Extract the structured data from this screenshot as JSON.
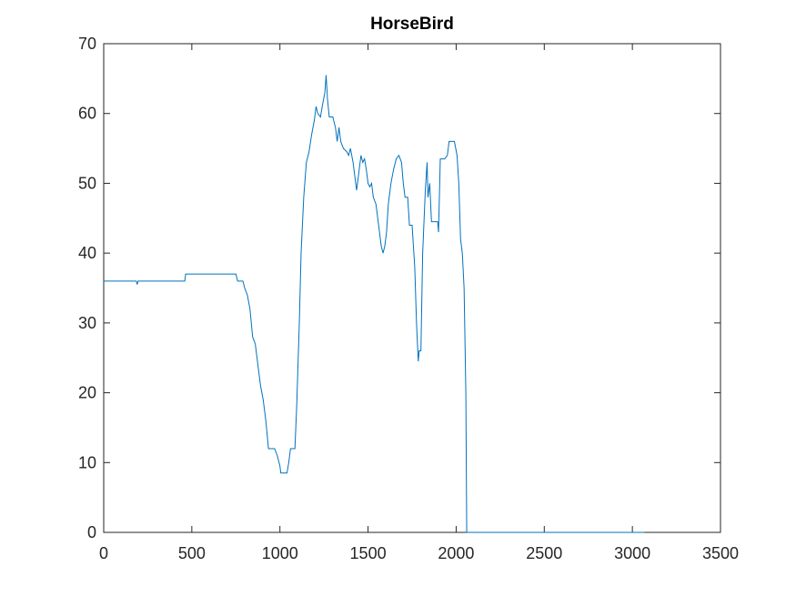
{
  "chart_data": {
    "type": "line",
    "title": "HorseBird",
    "x": [
      0,
      185,
      190,
      195,
      460,
      465,
      750,
      760,
      790,
      800,
      815,
      830,
      845,
      860,
      875,
      890,
      905,
      920,
      935,
      970,
      985,
      1000,
      1005,
      1040,
      1050,
      1060,
      1085,
      1095,
      1110,
      1120,
      1135,
      1150,
      1165,
      1180,
      1195,
      1205,
      1215,
      1230,
      1240,
      1255,
      1262,
      1270,
      1280,
      1300,
      1315,
      1325,
      1335,
      1345,
      1360,
      1380,
      1390,
      1400,
      1415,
      1425,
      1435,
      1445,
      1460,
      1470,
      1480,
      1490,
      1500,
      1510,
      1520,
      1530,
      1545,
      1560,
      1575,
      1585,
      1595,
      1605,
      1615,
      1630,
      1645,
      1660,
      1675,
      1690,
      1700,
      1710,
      1725,
      1735,
      1750,
      1765,
      1775,
      1785,
      1790,
      1800,
      1810,
      1825,
      1835,
      1840,
      1850,
      1860,
      1880,
      1895,
      1900,
      1910,
      1935,
      1950,
      1960,
      1990,
      2005,
      2015,
      2025,
      2035,
      2045,
      2055,
      2060,
      3070
    ],
    "series": [
      {
        "name": "HorseBird",
        "color": "#0072bd",
        "values": [
          36,
          36,
          35.5,
          36,
          36,
          37,
          37,
          36,
          36,
          35,
          34,
          32,
          28,
          27,
          24,
          21,
          19,
          16,
          12,
          12,
          11,
          9.5,
          8.5,
          8.5,
          10,
          12,
          12,
          18,
          30,
          40,
          48,
          53,
          54.5,
          57,
          59,
          61,
          60,
          59.5,
          61,
          63,
          65.5,
          62,
          59.5,
          59.5,
          58,
          56,
          58,
          56,
          55,
          54.5,
          54,
          55,
          53,
          51,
          49,
          51,
          54,
          53,
          53.5,
          52,
          50,
          49.5,
          50,
          48,
          47,
          44,
          41,
          40,
          41,
          43,
          47,
          50,
          52,
          53.5,
          54,
          53,
          50,
          48,
          48,
          44,
          44,
          38,
          30,
          24.5,
          26,
          26,
          40,
          49,
          53,
          48,
          50,
          44.5,
          44.5,
          44.5,
          43,
          53.5,
          53.5,
          54,
          56,
          56,
          54,
          50,
          42,
          40,
          35,
          20,
          0,
          0
        ]
      }
    ],
    "xlim": [
      0,
      3500
    ],
    "xticks": [
      0,
      500,
      1000,
      1500,
      2000,
      2500,
      3000,
      3500
    ],
    "ylim": [
      0,
      70
    ],
    "yticks": [
      0,
      10,
      20,
      30,
      40,
      50,
      60,
      70
    ]
  }
}
